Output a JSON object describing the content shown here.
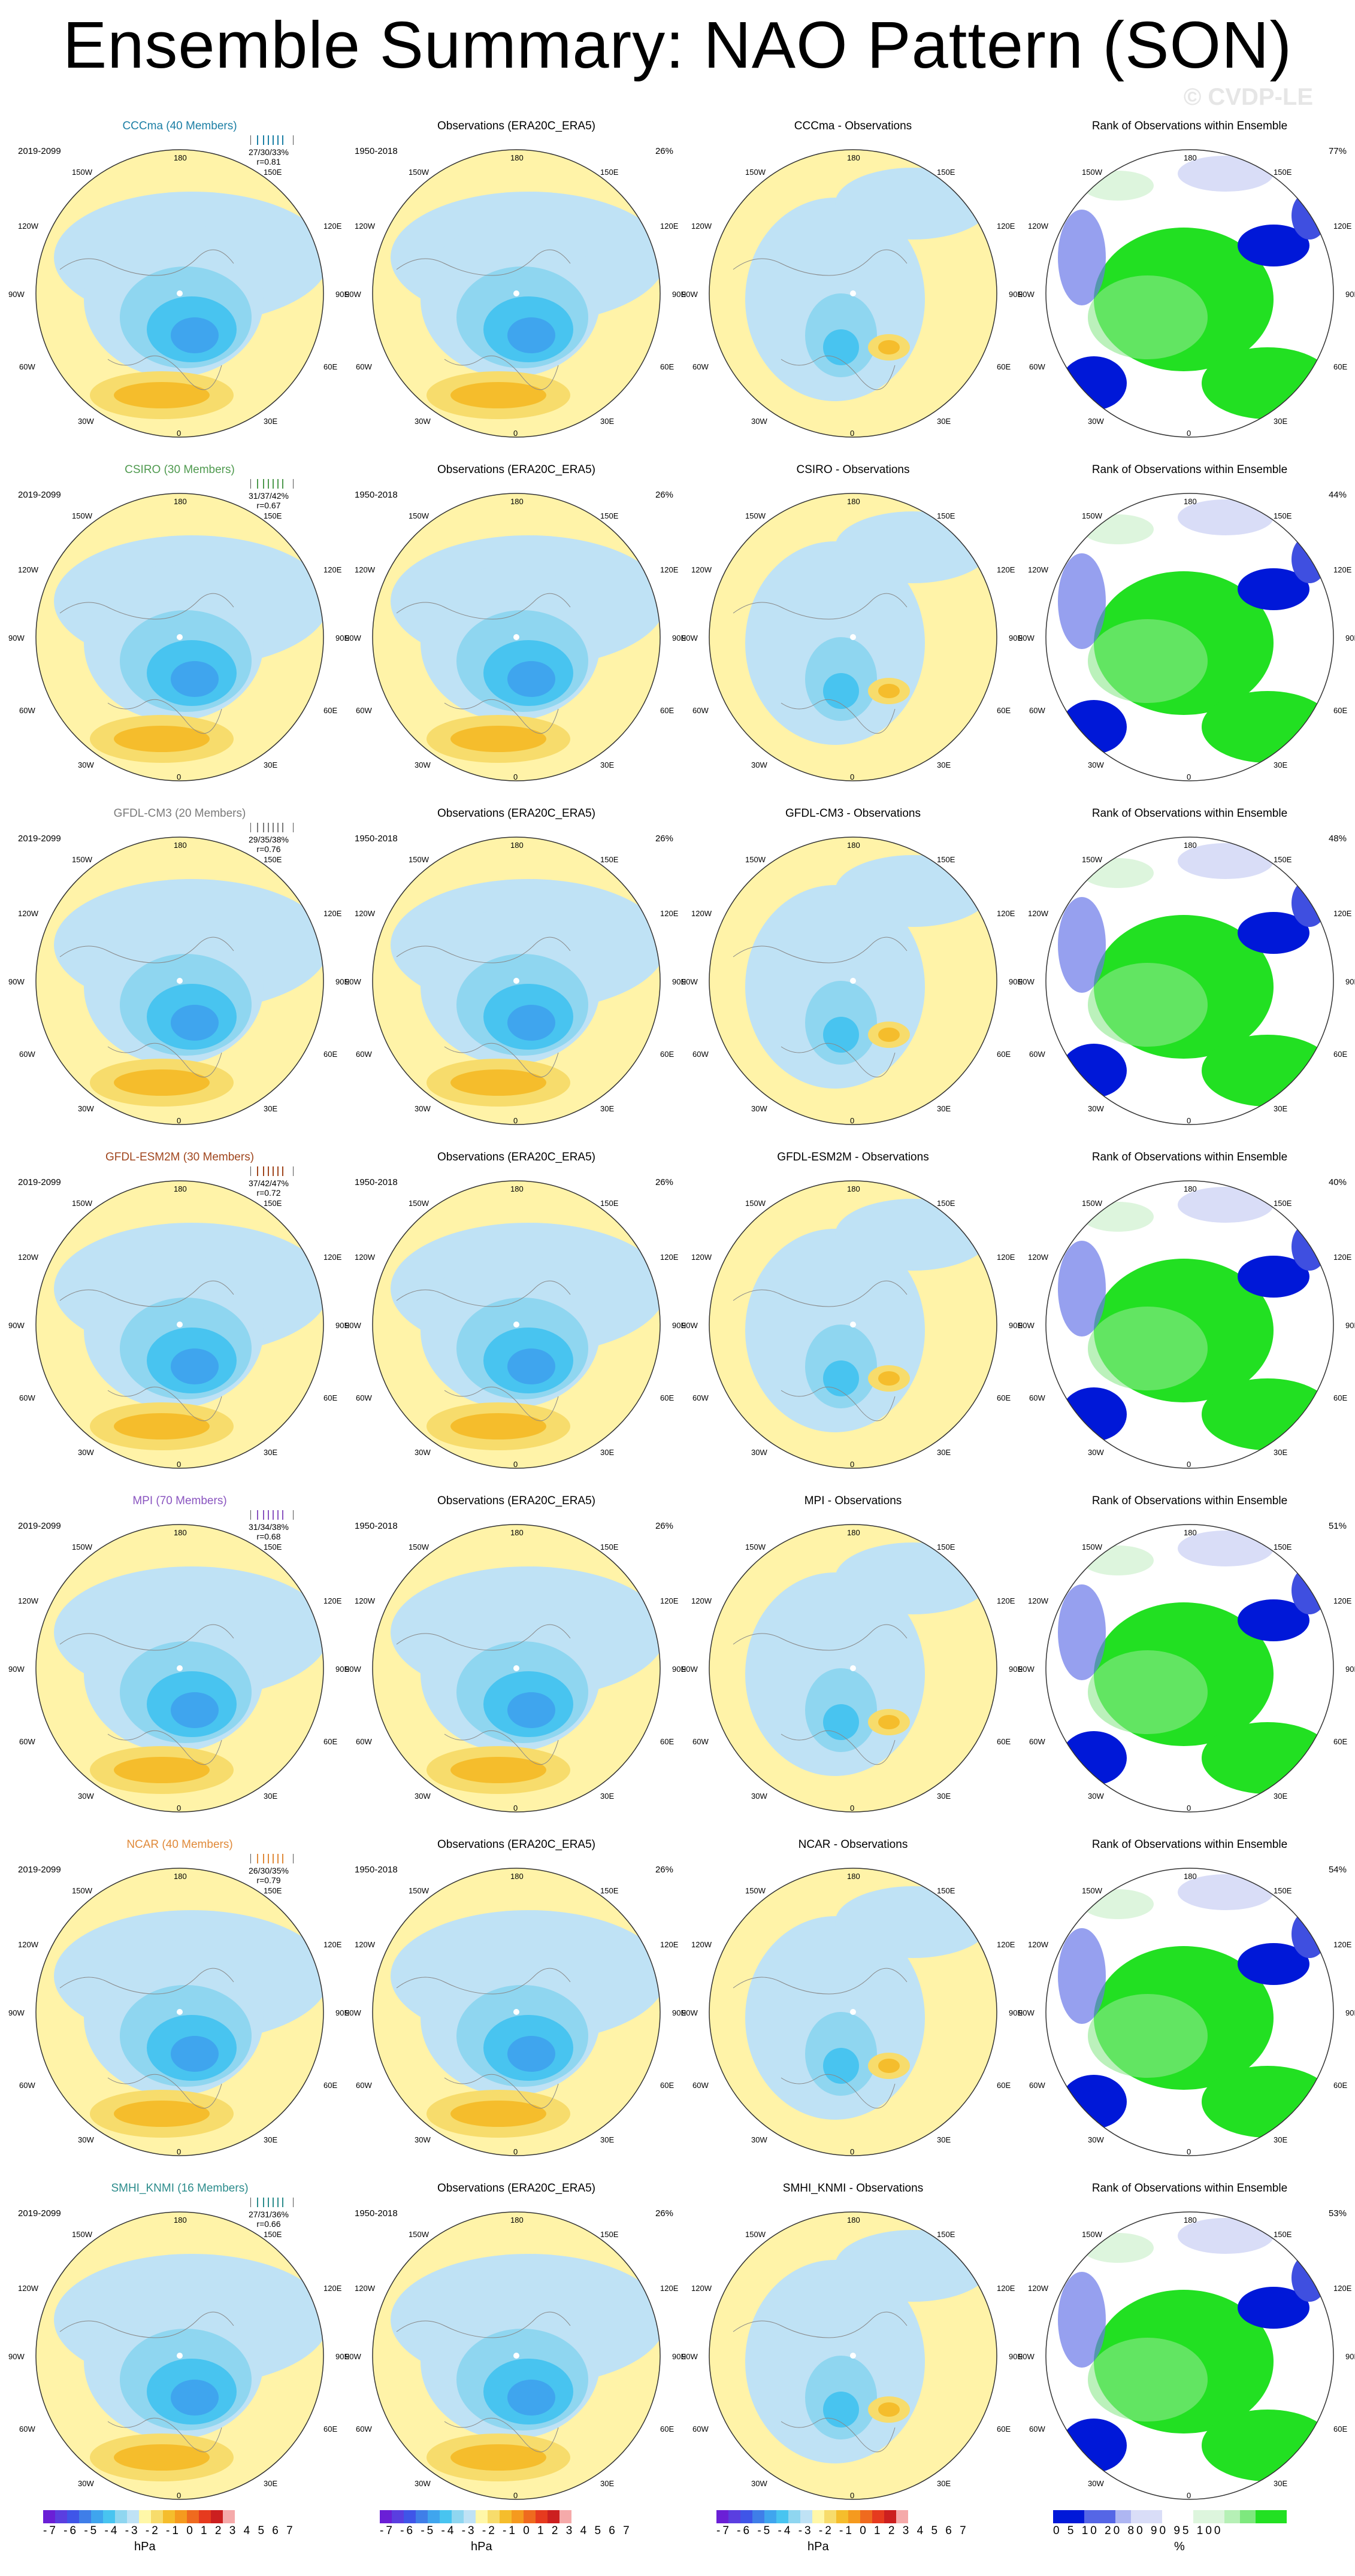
{
  "title": "Ensemble Summary: NAO Pattern (SON)",
  "watermark": "© CVDP-LE",
  "obs_title": "Observations (ERA20C_ERA5)",
  "obs_years": "1950-2018",
  "model_years": "2019-2099",
  "rank_title": "Rank of Observations within Ensemble",
  "rows": [
    {
      "model_title": "CCCma (40 Members)",
      "color": "#1c7fa5",
      "stats": "27/30/33%",
      "r": "r=0.81",
      "obs_pct": "26%",
      "diff_title": "CCCma - Observations",
      "rank_pct": "77%"
    },
    {
      "model_title": "CSIRO (30 Members)",
      "color": "#4f9a4f",
      "stats": "31/37/42%",
      "r": "r=0.67",
      "obs_pct": "26%",
      "diff_title": "CSIRO - Observations",
      "rank_pct": "44%"
    },
    {
      "model_title": "GFDL-CM3 (20 Members)",
      "color": "#7a7a7a",
      "stats": "29/35/38%",
      "r": "r=0.76",
      "obs_pct": "26%",
      "diff_title": "GFDL-CM3 - Observations",
      "rank_pct": "48%"
    },
    {
      "model_title": "GFDL-ESM2M (30 Members)",
      "color": "#a0461e",
      "stats": "37/42/47%",
      "r": "r=0.72",
      "obs_pct": "26%",
      "diff_title": "GFDL-ESM2M - Observations",
      "rank_pct": "40%"
    },
    {
      "model_title": "MPI (70 Members)",
      "color": "#8a55c0",
      "stats": "31/34/38%",
      "r": "r=0.68",
      "obs_pct": "26%",
      "diff_title": "MPI - Observations",
      "rank_pct": "51%"
    },
    {
      "model_title": "NCAR (40 Members)",
      "color": "#e08a3a",
      "stats": "26/30/35%",
      "r": "r=0.79",
      "obs_pct": "26%",
      "diff_title": "NCAR - Observations",
      "rank_pct": "54%"
    },
    {
      "model_title": "SMHI_KNMI (16 Members)",
      "color": "#2c8c8c",
      "stats": "27/31/36%",
      "r": "r=0.66",
      "obs_pct": "26%",
      "diff_title": "SMHI_KNMI - Observations",
      "rank_pct": "53%"
    }
  ],
  "lon_labels": {
    "top": "180",
    "tr": "150E",
    "r1": "120E",
    "r2": "90E",
    "r3": "60E",
    "br": "30E",
    "bottom": "0",
    "bl": "30W",
    "l3": "60W",
    "l2": "90W",
    "l1": "120W",
    "tl": "150W"
  },
  "colorbar_hpa": {
    "labels": "-7 -6 -5 -4 -3 -2 -1 0  1  2  3  4  5  6  7",
    "unit": "hPa",
    "colors": [
      "#6a1fd6",
      "#5a3ee0",
      "#3f55e8",
      "#3f7ee8",
      "#3fa5ee",
      "#48c4f0",
      "#8fd6f0",
      "#bfe2f5",
      "#fff7a8",
      "#f7dc6c",
      "#f5bd2c",
      "#f59a1e",
      "#ef6a1e",
      "#e63a1e",
      "#cc1f1f",
      "#f5aaaa"
    ]
  },
  "colorbar_rank": {
    "labels": "0   5   10       20        80       90  95 100",
    "unit": "%",
    "colors": [
      "#0018d8",
      "#0018d8",
      "#5566e6",
      "#5566e6",
      "#aeb6f2",
      "#d9ddf7",
      "#d9ddf7",
      "#ffffff",
      "#ffffff",
      "#ddf5dd",
      "#ddf5dd",
      "#b6f0b6",
      "#7ee87e",
      "#22e022",
      "#22e022"
    ]
  }
}
